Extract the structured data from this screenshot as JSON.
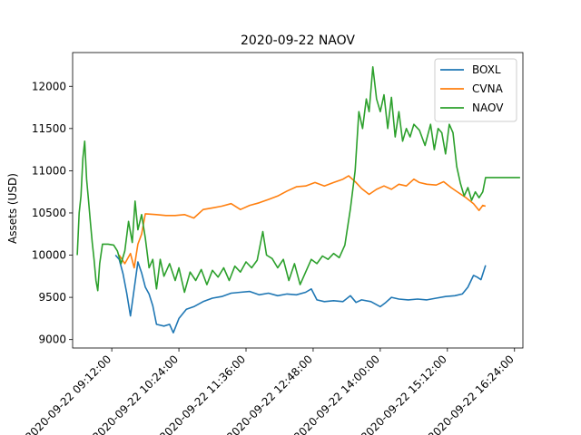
{
  "chart_data": {
    "type": "line",
    "title": "2020-09-22 NAOV",
    "xlabel": "",
    "ylabel": "Assets (USD)",
    "xlim": [
      "2020-09-22 08:30:00",
      "2020-09-22 16:33:00"
    ],
    "ylim": [
      8900,
      12400
    ],
    "x_ticks": [
      "2020-09-22 09:12:00",
      "2020-09-22 10:24:00",
      "2020-09-22 11:36:00",
      "2020-09-22 12:48:00",
      "2020-09-22 14:00:00",
      "2020-09-22 15:12:00",
      "2020-09-22 16:24:00"
    ],
    "y_ticks": [
      9000,
      9500,
      10000,
      10500,
      11000,
      11500,
      12000
    ],
    "grid": false,
    "legend": "top-right",
    "series": [
      {
        "name": "BOXL",
        "color": "#1f77b4",
        "points": [
          [
            "2020-09-22 09:16:00",
            10000
          ],
          [
            "2020-09-22 09:20:00",
            9950
          ],
          [
            "2020-09-22 09:24:00",
            9780
          ],
          [
            "2020-09-22 09:28:00",
            9550
          ],
          [
            "2020-09-22 09:32:00",
            9280
          ],
          [
            "2020-09-22 09:36:00",
            9600
          ],
          [
            "2020-09-22 09:40:00",
            9920
          ],
          [
            "2020-09-22 09:44:00",
            9790
          ],
          [
            "2020-09-22 09:48:00",
            9620
          ],
          [
            "2020-09-22 09:52:00",
            9540
          ],
          [
            "2020-09-22 09:56:00",
            9400
          ],
          [
            "2020-09-22 10:00:00",
            9180
          ],
          [
            "2020-09-22 10:08:00",
            9160
          ],
          [
            "2020-09-22 10:14:00",
            9180
          ],
          [
            "2020-09-22 10:18:00",
            9080
          ],
          [
            "2020-09-22 10:24:00",
            9250
          ],
          [
            "2020-09-22 10:32:00",
            9360
          ],
          [
            "2020-09-22 10:40:00",
            9390
          ],
          [
            "2020-09-22 10:50:00",
            9450
          ],
          [
            "2020-09-22 11:00:00",
            9490
          ],
          [
            "2020-09-22 11:10:00",
            9510
          ],
          [
            "2020-09-22 11:20:00",
            9550
          ],
          [
            "2020-09-22 11:30:00",
            9560
          ],
          [
            "2020-09-22 11:40:00",
            9570
          ],
          [
            "2020-09-22 11:50:00",
            9530
          ],
          [
            "2020-09-22 12:00:00",
            9550
          ],
          [
            "2020-09-22 12:10:00",
            9520
          ],
          [
            "2020-09-22 12:20:00",
            9540
          ],
          [
            "2020-09-22 12:30:00",
            9530
          ],
          [
            "2020-09-22 12:40:00",
            9560
          ],
          [
            "2020-09-22 12:46:00",
            9600
          ],
          [
            "2020-09-22 12:52:00",
            9470
          ],
          [
            "2020-09-22 13:00:00",
            9450
          ],
          [
            "2020-09-22 13:10:00",
            9460
          ],
          [
            "2020-09-22 13:20:00",
            9450
          ],
          [
            "2020-09-22 13:28:00",
            9520
          ],
          [
            "2020-09-22 13:34:00",
            9440
          ],
          [
            "2020-09-22 13:40:00",
            9470
          ],
          [
            "2020-09-22 13:50:00",
            9450
          ],
          [
            "2020-09-22 14:00:00",
            9390
          ],
          [
            "2020-09-22 14:06:00",
            9440
          ],
          [
            "2020-09-22 14:12:00",
            9500
          ],
          [
            "2020-09-22 14:20:00",
            9480
          ],
          [
            "2020-09-22 14:30:00",
            9470
          ],
          [
            "2020-09-22 14:40:00",
            9480
          ],
          [
            "2020-09-22 14:50:00",
            9470
          ],
          [
            "2020-09-22 15:00:00",
            9490
          ],
          [
            "2020-09-22 15:10:00",
            9510
          ],
          [
            "2020-09-22 15:20:00",
            9520
          ],
          [
            "2020-09-22 15:28:00",
            9540
          ],
          [
            "2020-09-22 15:34:00",
            9620
          ],
          [
            "2020-09-22 15:40:00",
            9760
          ],
          [
            "2020-09-22 15:44:00",
            9740
          ],
          [
            "2020-09-22 15:48:00",
            9710
          ],
          [
            "2020-09-22 15:53:00",
            9880
          ]
        ]
      },
      {
        "name": "CVNA",
        "color": "#ff7f0e",
        "points": [
          [
            "2020-09-22 09:20:00",
            10000
          ],
          [
            "2020-09-22 09:26:00",
            9900
          ],
          [
            "2020-09-22 09:32:00",
            10020
          ],
          [
            "2020-09-22 09:36:00",
            9850
          ],
          [
            "2020-09-22 09:40:00",
            10130
          ],
          [
            "2020-09-22 09:44:00",
            10250
          ],
          [
            "2020-09-22 09:48:00",
            10490
          ],
          [
            "2020-09-22 10:00:00",
            10480
          ],
          [
            "2020-09-22 10:10:00",
            10470
          ],
          [
            "2020-09-22 10:20:00",
            10470
          ],
          [
            "2020-09-22 10:30:00",
            10480
          ],
          [
            "2020-09-22 10:40:00",
            10440
          ],
          [
            "2020-09-22 10:50:00",
            10540
          ],
          [
            "2020-09-22 11:00:00",
            10560
          ],
          [
            "2020-09-22 11:10:00",
            10580
          ],
          [
            "2020-09-22 11:20:00",
            10610
          ],
          [
            "2020-09-22 11:30:00",
            10540
          ],
          [
            "2020-09-22 11:40:00",
            10590
          ],
          [
            "2020-09-22 11:50:00",
            10620
          ],
          [
            "2020-09-22 12:00:00",
            10660
          ],
          [
            "2020-09-22 12:10:00",
            10700
          ],
          [
            "2020-09-22 12:20:00",
            10760
          ],
          [
            "2020-09-22 12:30:00",
            10810
          ],
          [
            "2020-09-22 12:40:00",
            10820
          ],
          [
            "2020-09-22 12:50:00",
            10860
          ],
          [
            "2020-09-22 13:00:00",
            10820
          ],
          [
            "2020-09-22 13:10:00",
            10860
          ],
          [
            "2020-09-22 13:20:00",
            10900
          ],
          [
            "2020-09-22 13:26:00",
            10940
          ],
          [
            "2020-09-22 13:34:00",
            10860
          ],
          [
            "2020-09-22 13:40:00",
            10790
          ],
          [
            "2020-09-22 13:48:00",
            10720
          ],
          [
            "2020-09-22 13:56:00",
            10780
          ],
          [
            "2020-09-22 14:04:00",
            10820
          ],
          [
            "2020-09-22 14:12:00",
            10780
          ],
          [
            "2020-09-22 14:20:00",
            10840
          ],
          [
            "2020-09-22 14:28:00",
            10820
          ],
          [
            "2020-09-22 14:36:00",
            10900
          ],
          [
            "2020-09-22 14:42:00",
            10860
          ],
          [
            "2020-09-22 14:50:00",
            10840
          ],
          [
            "2020-09-22 15:00:00",
            10830
          ],
          [
            "2020-09-22 15:08:00",
            10870
          ],
          [
            "2020-09-22 15:16:00",
            10800
          ],
          [
            "2020-09-22 15:24:00",
            10740
          ],
          [
            "2020-09-22 15:32:00",
            10680
          ],
          [
            "2020-09-22 15:40:00",
            10610
          ],
          [
            "2020-09-22 15:46:00",
            10530
          ],
          [
            "2020-09-22 15:50:00",
            10590
          ],
          [
            "2020-09-22 15:53:00",
            10580
          ]
        ]
      },
      {
        "name": "NAOV",
        "color": "#2ca02c",
        "points": [
          [
            "2020-09-22 08:35:00",
            10000
          ],
          [
            "2020-09-22 08:37:00",
            10500
          ],
          [
            "2020-09-22 08:39:00",
            10700
          ],
          [
            "2020-09-22 08:41:00",
            11150
          ],
          [
            "2020-09-22 08:43:00",
            11350
          ],
          [
            "2020-09-22 08:45:00",
            10900
          ],
          [
            "2020-09-22 08:47:00",
            10650
          ],
          [
            "2020-09-22 08:49:00",
            10400
          ],
          [
            "2020-09-22 08:51:00",
            10150
          ],
          [
            "2020-09-22 08:53:00",
            9950
          ],
          [
            "2020-09-22 08:55:00",
            9700
          ],
          [
            "2020-09-22 08:57:00",
            9580
          ],
          [
            "2020-09-22 08:59:00",
            9900
          ],
          [
            "2020-09-22 09:02:00",
            10130
          ],
          [
            "2020-09-22 09:08:00",
            10130
          ],
          [
            "2020-09-22 09:14:00",
            10120
          ],
          [
            "2020-09-22 09:18:00",
            10050
          ],
          [
            "2020-09-22 09:22:00",
            9900
          ],
          [
            "2020-09-22 09:26:00",
            10050
          ],
          [
            "2020-09-22 09:30:00",
            10400
          ],
          [
            "2020-09-22 09:34:00",
            10150
          ],
          [
            "2020-09-22 09:37:00",
            10640
          ],
          [
            "2020-09-22 09:40:00",
            10300
          ],
          [
            "2020-09-22 09:44:00",
            10480
          ],
          [
            "2020-09-22 09:48:00",
            10200
          ],
          [
            "2020-09-22 09:52:00",
            9850
          ],
          [
            "2020-09-22 09:56:00",
            9950
          ],
          [
            "2020-09-22 10:00:00",
            9600
          ],
          [
            "2020-09-22 10:04:00",
            9950
          ],
          [
            "2020-09-22 10:08:00",
            9750
          ],
          [
            "2020-09-22 10:14:00",
            9900
          ],
          [
            "2020-09-22 10:20:00",
            9700
          ],
          [
            "2020-09-22 10:24:00",
            9850
          ],
          [
            "2020-09-22 10:30:00",
            9560
          ],
          [
            "2020-09-22 10:36:00",
            9800
          ],
          [
            "2020-09-22 10:42:00",
            9700
          ],
          [
            "2020-09-22 10:48:00",
            9830
          ],
          [
            "2020-09-22 10:54:00",
            9650
          ],
          [
            "2020-09-22 11:00:00",
            9820
          ],
          [
            "2020-09-22 11:06:00",
            9740
          ],
          [
            "2020-09-22 11:12:00",
            9850
          ],
          [
            "2020-09-22 11:18:00",
            9700
          ],
          [
            "2020-09-22 11:24:00",
            9870
          ],
          [
            "2020-09-22 11:30:00",
            9800
          ],
          [
            "2020-09-22 11:36:00",
            9920
          ],
          [
            "2020-09-22 11:42:00",
            9850
          ],
          [
            "2020-09-22 11:48:00",
            9940
          ],
          [
            "2020-09-22 11:54:00",
            10280
          ],
          [
            "2020-09-22 11:58:00",
            10000
          ],
          [
            "2020-09-22 12:04:00",
            9960
          ],
          [
            "2020-09-22 12:10:00",
            9850
          ],
          [
            "2020-09-22 12:16:00",
            9950
          ],
          [
            "2020-09-22 12:22:00",
            9700
          ],
          [
            "2020-09-22 12:28:00",
            9900
          ],
          [
            "2020-09-22 12:34:00",
            9650
          ],
          [
            "2020-09-22 12:40:00",
            9800
          ],
          [
            "2020-09-22 12:46:00",
            9950
          ],
          [
            "2020-09-22 12:52:00",
            9900
          ],
          [
            "2020-09-22 12:58:00",
            9990
          ],
          [
            "2020-09-22 13:04:00",
            9950
          ],
          [
            "2020-09-22 13:10:00",
            10020
          ],
          [
            "2020-09-22 13:16:00",
            9970
          ],
          [
            "2020-09-22 13:22:00",
            10120
          ],
          [
            "2020-09-22 13:28:00",
            10550
          ],
          [
            "2020-09-22 13:33:00",
            11000
          ],
          [
            "2020-09-22 13:37:00",
            11700
          ],
          [
            "2020-09-22 13:41:00",
            11500
          ],
          [
            "2020-09-22 13:45:00",
            11850
          ],
          [
            "2020-09-22 13:48:00",
            11700
          ],
          [
            "2020-09-22 13:52:00",
            12230
          ],
          [
            "2020-09-22 13:56:00",
            11850
          ],
          [
            "2020-09-22 14:00:00",
            11700
          ],
          [
            "2020-09-22 14:04:00",
            11900
          ],
          [
            "2020-09-22 14:08:00",
            11500
          ],
          [
            "2020-09-22 14:12:00",
            11870
          ],
          [
            "2020-09-22 14:16:00",
            11400
          ],
          [
            "2020-09-22 14:20:00",
            11700
          ],
          [
            "2020-09-22 14:24:00",
            11350
          ],
          [
            "2020-09-22 14:28:00",
            11500
          ],
          [
            "2020-09-22 14:32:00",
            11400
          ],
          [
            "2020-09-22 14:36:00",
            11550
          ],
          [
            "2020-09-22 14:42:00",
            11480
          ],
          [
            "2020-09-22 14:48:00",
            11300
          ],
          [
            "2020-09-22 14:54:00",
            11550
          ],
          [
            "2020-09-22 14:58:00",
            11250
          ],
          [
            "2020-09-22 15:02:00",
            11500
          ],
          [
            "2020-09-22 15:06:00",
            11450
          ],
          [
            "2020-09-22 15:10:00",
            11200
          ],
          [
            "2020-09-22 15:14:00",
            11550
          ],
          [
            "2020-09-22 15:18:00",
            11450
          ],
          [
            "2020-09-22 15:22:00",
            11050
          ],
          [
            "2020-09-22 15:26:00",
            10850
          ],
          [
            "2020-09-22 15:30:00",
            10700
          ],
          [
            "2020-09-22 15:34:00",
            10800
          ],
          [
            "2020-09-22 15:38:00",
            10650
          ],
          [
            "2020-09-22 15:42:00",
            10750
          ],
          [
            "2020-09-22 15:46:00",
            10680
          ],
          [
            "2020-09-22 15:50:00",
            10750
          ],
          [
            "2020-09-22 15:53:00",
            10920
          ],
          [
            "2020-09-22 16:00:00",
            10920
          ],
          [
            "2020-09-22 16:15:00",
            10920
          ],
          [
            "2020-09-22 16:30:00",
            10920
          ]
        ]
      }
    ]
  }
}
